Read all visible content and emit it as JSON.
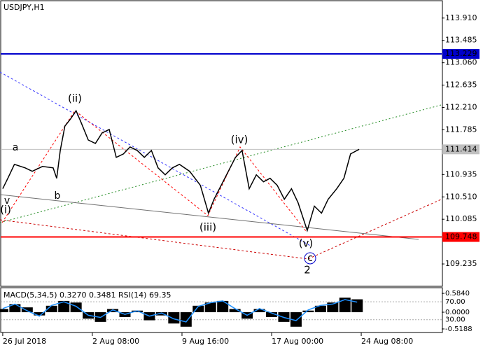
{
  "chart_data": [
    {
      "type": "line",
      "title": "USDJPY,H1",
      "x": [
        0,
        10,
        23,
        44,
        58,
        78,
        99,
        106,
        113,
        122,
        133,
        144,
        154,
        168,
        182,
        195,
        209,
        223,
        237,
        250,
        264,
        278,
        292,
        305,
        319,
        333,
        347,
        367,
        388,
        404,
        415,
        429,
        443,
        457,
        470,
        484,
        498,
        512,
        525,
        539,
        553,
        567,
        580,
        598,
        612,
        626,
        639,
        656,
        670,
        683,
        700
      ],
      "values": [
        110.665,
        110.864,
        111.128,
        111.062,
        110.996,
        111.089,
        111.062,
        110.864,
        111.393,
        111.857,
        111.989,
        112.148,
        111.923,
        111.592,
        111.526,
        111.724,
        111.791,
        111.261,
        111.327,
        111.46,
        111.393,
        111.261,
        111.393,
        111.062,
        110.93,
        111.062,
        111.128,
        110.996,
        110.731,
        110.201,
        110.466,
        110.731,
        110.996,
        111.261,
        111.393,
        110.665,
        110.93,
        110.797,
        110.864,
        110.731,
        110.466,
        110.665,
        110.4,
        109.87,
        110.334,
        110.201,
        110.466,
        110.665,
        110.864,
        111.327,
        111.414
      ],
      "color": "#000000",
      "xlim": [
        -4,
        862
      ],
      "ylim": [
        108.81,
        114.24
      ],
      "xticks": [
        {
          "value": 0,
          "label": "26 Jul 2018"
        },
        {
          "value": 176,
          "label": "2 Aug 08:00"
        },
        {
          "value": 352,
          "label": "9 Aug 16:00"
        },
        {
          "value": 528,
          "label": "17 Aug 00:00"
        },
        {
          "value": 704,
          "label": "24 Aug 08:00"
        }
      ],
      "yticks": [
        {
          "value": 113.91,
          "label": "113.910"
        },
        {
          "value": 113.485,
          "label": "113.485"
        },
        {
          "value": 113.06,
          "label": "113.060"
        },
        {
          "value": 112.635,
          "label": "112.635"
        },
        {
          "value": 112.21,
          "label": "112.210"
        },
        {
          "value": 111.785,
          "label": "111.785"
        },
        {
          "value": 110.935,
          "label": "110.935"
        },
        {
          "value": 110.51,
          "label": "110.510"
        },
        {
          "value": 110.085,
          "label": "110.085"
        },
        {
          "value": 109.235,
          "label": "109.235"
        }
      ],
      "levels": [
        {
          "value": 113.229,
          "color": "#0000cc"
        },
        {
          "value": 111.414,
          "color": "#c0c0c0"
        },
        {
          "value": 109.748,
          "color": "#ff0000"
        }
      ],
      "annotations": [
        {
          "text": "(i)",
          "color": "#cc0000"
        },
        {
          "text": "(ii)",
          "color": "#cc0000"
        },
        {
          "text": "(iii)",
          "color": "#cc0000"
        },
        {
          "text": "(iv)",
          "color": "#cc0000"
        },
        {
          "text": "(v)",
          "color": "#cc0000"
        },
        {
          "text": "2",
          "color": "#cc0000"
        },
        {
          "text": "a",
          "color": "#808080"
        },
        {
          "text": "b",
          "color": "#808080"
        },
        {
          "text": "v",
          "color": "#808080"
        },
        {
          "text": "c",
          "color": "#0000cc"
        }
      ]
    },
    {
      "type": "bar",
      "title": "MACD(5,34,5) 0.3270 0.3481 RSI(14) 69.35",
      "x": [
        0,
        24,
        48,
        72,
        96,
        120,
        144,
        168,
        192,
        216,
        240,
        264,
        288,
        312,
        336,
        360,
        384,
        408,
        432,
        456,
        480,
        504,
        528,
        552,
        576,
        600,
        624,
        648,
        672,
        696
      ],
      "series": [
        {
          "color": "#000000",
          "values": [
            0.1,
            0.25,
            0.15,
            -0.1,
            0.2,
            0.35,
            0.3,
            -0.2,
            -0.3,
            0.1,
            -0.15,
            0.05,
            -0.25,
            -0.1,
            -0.35,
            -0.45,
            0.2,
            0.3,
            0.35,
            0.1,
            -0.2,
            0.1,
            -0.15,
            -0.3,
            -0.45,
            0.05,
            0.2,
            0.3,
            0.45,
            0.4
          ]
        },
        {
          "color": "#1e90ff",
          "axis": "y2",
          "values": [
            55,
            65,
            50,
            38,
            62,
            70,
            60,
            40,
            35,
            52,
            42,
            50,
            38,
            45,
            32,
            25,
            60,
            68,
            72,
            55,
            40,
            55,
            45,
            35,
            28,
            52,
            62,
            65,
            75,
            69.35
          ]
        }
      ],
      "ylim": [
        -0.607,
        0.738
      ],
      "yticks": [
        {
          "value": 0.584,
          "label": "0.5840"
        },
        {
          "value": 0,
          "label": "0.0000"
        },
        {
          "value": -0.5188,
          "label": "-0.5188"
        }
      ],
      "y2lim": [
        3,
        100
      ],
      "y2ticks": [
        {
          "value": 70,
          "label": "70.00"
        },
        {
          "value": 30,
          "label": "30.00"
        }
      ]
    }
  ]
}
